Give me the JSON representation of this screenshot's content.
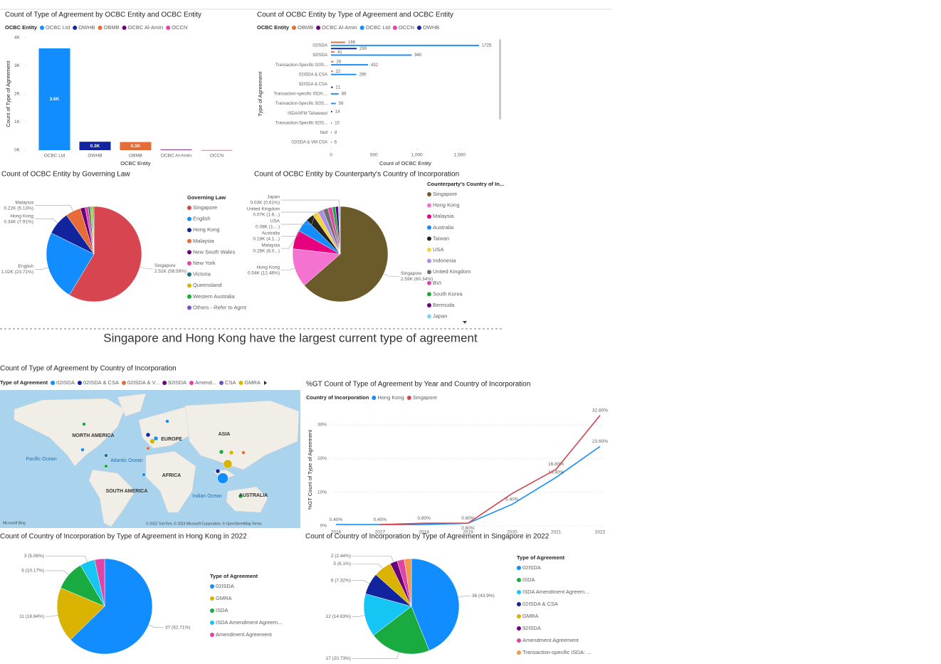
{
  "chart_data": [
    {
      "type": "bar",
      "title": "Count of Type of Agreement by OCBC Entity and OCBC Entity",
      "legend_title": "OCBC Entity",
      "categories": [
        "OCBC Ltd",
        "OWHB",
        "OBMB",
        "OCBC Al-Amin",
        "OCCN"
      ],
      "colors": [
        "#118DFF",
        "#12239E",
        "#E66C37",
        "#6B007B",
        "#E044A7"
      ],
      "values": [
        3620,
        300,
        290,
        20,
        5
      ],
      "value_labels": [
        "3.6K",
        "0.3K",
        "0.3K",
        null,
        null
      ],
      "ylim": [
        0,
        4000
      ],
      "yticks": [
        {
          "value": 0,
          "label": "0K"
        },
        {
          "value": 1000,
          "label": "1K"
        },
        {
          "value": 2000,
          "label": "2K"
        },
        {
          "value": 3000,
          "label": "3K"
        },
        {
          "value": 4000,
          "label": "4K"
        }
      ],
      "xlabel": "OCBC Entity",
      "ylabel": "Count of Type of Agreement"
    },
    {
      "type": "hbar",
      "title": "Count of OCBC Entity by Type of Agreement and OCBC Entity",
      "legend_title": "OCBC Entity",
      "categories": [
        "02ISDA",
        "92ISDA",
        "Transaction-Specific 02IS...",
        "02ISDA & CSA",
        "92ISDA & CSA",
        "Transaction-specific ISDA:...",
        "Transaction-Specific 92IS...",
        "ISDA/IIFM Tahawwut",
        "Transaction-Specific 92IS...",
        "Null",
        "02ISDA & VM CSA"
      ],
      "series": [
        {
          "name": "OBMB",
          "color": "#E66C37",
          "values": [
            166,
            41,
            28,
            22,
            null,
            null,
            null,
            null,
            null,
            null,
            null
          ]
        },
        {
          "name": "OCBC Al-Amin",
          "color": "#6B007B",
          "values": [
            null,
            null,
            null,
            null,
            null,
            null,
            null,
            14,
            null,
            null,
            null
          ]
        },
        {
          "name": "OCBC Ltd",
          "color": "#118DFF",
          "values": [
            1725,
            940,
            432,
            295,
            null,
            89,
            56,
            null,
            10,
            8,
            6
          ]
        },
        {
          "name": "OCCN",
          "color": "#E044A7",
          "values": [
            null,
            null,
            null,
            null,
            null,
            null,
            null,
            null,
            null,
            null,
            null
          ]
        },
        {
          "name": "OWHB",
          "color": "#12239E",
          "values": [
            299,
            null,
            null,
            null,
            21,
            null,
            null,
            null,
            null,
            null,
            null
          ]
        }
      ],
      "xlim": [
        0,
        1800
      ],
      "xticks": [
        0,
        500,
        {
          "value": 1000,
          "label": "1,000"
        },
        {
          "value": 1500,
          "label": "1,500"
        }
      ],
      "xlabel": "Count of OCBC Entity",
      "ylabel": "Type of Agreement"
    },
    {
      "type": "pie",
      "title": "Count of OCBC Entity by Governing Law",
      "legend_title": "Governing Law",
      "label_category": true,
      "categories": [
        "Singapore",
        "English",
        "Hong Kong",
        "Malaysia",
        "New South Wales",
        "New York",
        "Victoria",
        "Queensland",
        "Western Australia",
        "Others - Refer to Agmt"
      ],
      "colors": [
        "#D64550",
        "#118DFF",
        "#12239E",
        "#E66C37",
        "#6B007B",
        "#E044A7",
        "#197278",
        "#D9B300",
        "#1AAB40",
        "#744EC2"
      ],
      "values": [
        2510,
        1016,
        339,
        220,
        70,
        45,
        30,
        25,
        17,
        12
      ],
      "value_labels": [
        "2.51K (58.59%)",
        "1.02K (23.71%)",
        "0.34K (7.91%)",
        "0.22K (5.13%)",
        null,
        null,
        null,
        null,
        null,
        null
      ]
    },
    {
      "type": "pie",
      "title": "Count of OCBC Entity by Counterparty's Country of Incorporation",
      "legend_title": "Counterparty's Country of In...",
      "label_category": true,
      "categories": [
        "Singapore",
        "Hong Kong",
        "Malaysia",
        "Australia",
        "Taiwan",
        "USA",
        "Indonesia",
        "United Kingdom",
        "BVI",
        "South Korea",
        "Bermuda",
        "Japan"
      ],
      "colors": [
        "#6B5A2A",
        "#F472D0",
        "#E6007E",
        "#118DFF",
        "#252423",
        "#F5D33F",
        "#A98FE8",
        "#6E6E6E",
        "#E044A7",
        "#1AAB40",
        "#6B007B",
        "#8AD4EB"
      ],
      "values": [
        2590,
        536,
        260,
        180,
        110,
        80,
        75,
        70,
        60,
        45,
        40,
        26
      ],
      "value_labels": [
        "2.59K (60.34%)",
        "0.54K (12.48%)",
        "0.26K (6.0...)",
        "0.18K (4.1...)",
        null,
        "0.08K (1....)",
        null,
        "0.07K (1.6...)",
        null,
        null,
        null,
        "0.03K (0.61%)"
      ]
    },
    {
      "type": "map",
      "title": "Count of Type of Agreement by Country of Incorporation",
      "legend_title": "Type of Agreement",
      "categories": [
        "02ISDA",
        "02ISDA & CSA",
        "02ISDA & V...",
        "92ISDA",
        "Amend...",
        "CSA",
        "GMRA"
      ],
      "colors": [
        "#118DFF",
        "#12239E",
        "#E66C37",
        "#6B007B",
        "#E044A7",
        "#744EC2",
        "#D9B300"
      ],
      "labels": [
        "NORTH AMERICA",
        "EUROPE",
        "ASIA",
        "AFRICA",
        "SOUTH AMERICA",
        "AUSTRALIA",
        "Pacific Ocean",
        "Atlantic Ocean",
        "Indian Ocean"
      ],
      "attribution": "© 2022 TomTom, © 2023 Microsoft Corporation, © OpenStreetMap Terms",
      "provider": "Microsoft Bing"
    },
    {
      "type": "line",
      "title": "%GT Count of Type of Agreement by Year and Country of Incorporation",
      "legend_title": "Country of Incorporation",
      "categories": [
        "2016",
        "2017",
        "2018",
        "2019",
        "2020",
        "2021",
        "2022"
      ],
      "series": [
        {
          "name": "Hong Kong",
          "color": "#118DFF",
          "values": [
            0.4,
            0.4,
            0.4,
            0.8,
            6.4,
            14.4,
            23.6
          ],
          "value_labels": [
            "0.40%",
            "0.40%",
            null,
            "0.80%",
            "6.40%",
            "14.40%",
            "23.60%"
          ]
        },
        {
          "name": "Singapore",
          "color": "#D64550",
          "values": [
            null,
            0.4,
            0.8,
            0.8,
            9.6,
            16.8,
            32.8
          ],
          "value_labels": [
            null,
            null,
            "0.80%",
            "0.80%",
            null,
            "16.80%",
            "32.80%"
          ]
        }
      ],
      "ylim": [
        0,
        34
      ],
      "yticks": [
        {
          "value": 0,
          "label": "0%"
        },
        {
          "value": 10,
          "label": "10%"
        },
        {
          "value": 20,
          "label": "20%"
        },
        {
          "value": 30,
          "label": "30%"
        }
      ],
      "grid": true,
      "ylabel": "%GT Count of Type of Agreement"
    },
    {
      "type": "pie",
      "title": "Count of Country of Incorporation by Type of Agreement in Hong Kong in 2022",
      "legend_title": "Type of Agreement",
      "label_category": false,
      "categories": [
        "02ISDA",
        "GMRA",
        "ISDA",
        "ISDA Amendment Agreem...",
        "Amendment Agreement"
      ],
      "colors": [
        "#118DFF",
        "#D9B300",
        "#1AAB40",
        "#15C6F4",
        "#E044A7"
      ],
      "values": [
        37,
        11,
        6,
        3,
        2
      ],
      "value_labels": [
        "37 (62.71%)",
        "11 (18.64%)",
        "6 (10.17%)",
        "3 (5.08%)",
        null
      ]
    },
    {
      "type": "pie",
      "title": "Count of Country of Incorporation by Type of Agreement in Singapore in 2022",
      "legend_title": "Type of Agreement",
      "label_category": false,
      "categories": [
        "02ISDA",
        "ISDA",
        "ISDA Amendment Agreem...",
        "02ISDA & CSA",
        "GMRA",
        "92ISDA",
        "Amendment Agreement",
        "Transaction-specific ISDA: ..."
      ],
      "colors": [
        "#118DFF",
        "#1AAB40",
        "#15C6F4",
        "#12239E",
        "#D9B300",
        "#6B007B",
        "#E044A7",
        "#F39A4B"
      ],
      "values": [
        36,
        17,
        12,
        6,
        5,
        2,
        2,
        2
      ],
      "value_labels": [
        "36 (43.9%)",
        "17 (20.73%)",
        "12 (14.63%)",
        "6 (7.32%)",
        "5 (6.1%)",
        "2 (2.44%)",
        null,
        null
      ]
    }
  ],
  "caption": "Singapore and Hong Kong have the largest current type of agreement"
}
